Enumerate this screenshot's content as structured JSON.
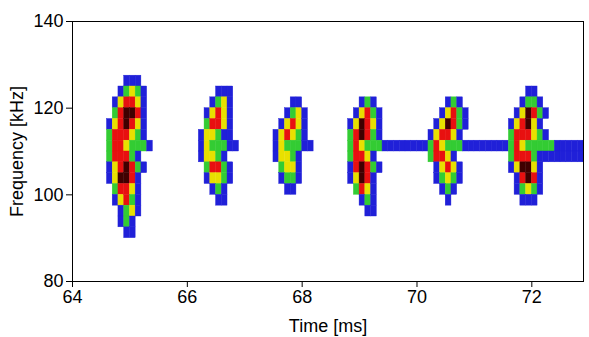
{
  "chart_data": {
    "type": "heatmap",
    "x_label": "Time [ms]",
    "y_label": "Frequency [kHz]",
    "xlim": [
      64,
      72.9
    ],
    "ylim": [
      80,
      140
    ],
    "xticks": [
      64,
      66,
      68,
      70,
      72
    ],
    "yticks": [
      80,
      100,
      120,
      140
    ],
    "time_step": 0.1,
    "frequency_step": 2.5,
    "colors": [
      "#2020d8",
      "#33cc33",
      "#e8e000",
      "#e81010",
      "#400000"
    ],
    "rows": [
      {
        "frequency": 125,
        "start": 64.9,
        "levels": [
          1,
          1,
          1
        ]
      },
      {
        "frequency": 122.5,
        "start": 64.8,
        "levels": [
          1,
          2,
          3,
          2,
          1
        ]
      },
      {
        "frequency": 120,
        "start": 64.7,
        "levels": [
          1,
          3,
          4,
          4,
          3,
          1
        ]
      },
      {
        "frequency": 117.5,
        "start": 64.7,
        "levels": [
          2,
          4,
          5,
          5,
          4,
          1
        ]
      },
      {
        "frequency": 115,
        "start": 64.6,
        "levels": [
          1,
          3,
          4,
          5,
          4,
          3,
          1
        ]
      },
      {
        "frequency": 112.5,
        "start": 64.6,
        "levels": [
          2,
          4,
          4,
          4,
          3,
          2,
          1
        ]
      },
      {
        "frequency": 110,
        "start": 64.6,
        "levels": [
          2,
          4,
          4,
          3,
          2,
          2,
          2,
          1
        ]
      },
      {
        "frequency": 107.5,
        "start": 64.6,
        "levels": [
          2,
          4,
          4,
          4,
          2,
          1
        ]
      },
      {
        "frequency": 105,
        "start": 64.6,
        "levels": [
          1,
          3,
          4,
          5,
          4,
          2,
          1
        ]
      },
      {
        "frequency": 102.5,
        "start": 64.6,
        "levels": [
          1,
          3,
          5,
          5,
          4,
          1
        ]
      },
      {
        "frequency": 100,
        "start": 64.7,
        "levels": [
          2,
          4,
          4,
          3,
          1
        ]
      },
      {
        "frequency": 97.5,
        "start": 64.7,
        "levels": [
          1,
          3,
          4,
          2,
          1
        ]
      },
      {
        "frequency": 95,
        "start": 64.8,
        "levels": [
          1,
          2,
          3,
          1
        ]
      },
      {
        "frequency": 92.5,
        "start": 64.8,
        "levels": [
          1,
          2,
          1
        ]
      },
      {
        "frequency": 90,
        "start": 64.9,
        "levels": [
          1,
          1
        ]
      },
      {
        "frequency": 122.5,
        "start": 66.5,
        "levels": [
          1,
          1,
          1
        ]
      },
      {
        "frequency": 120,
        "start": 66.4,
        "levels": [
          1,
          2,
          3,
          1
        ]
      },
      {
        "frequency": 117.5,
        "start": 66.3,
        "levels": [
          1,
          3,
          4,
          3,
          1
        ]
      },
      {
        "frequency": 115,
        "start": 66.3,
        "levels": [
          2,
          4,
          4,
          3,
          1
        ]
      },
      {
        "frequency": 112.5,
        "start": 66.2,
        "levels": [
          1,
          3,
          3,
          2,
          1,
          1
        ]
      },
      {
        "frequency": 110,
        "start": 66.2,
        "levels": [
          1,
          3,
          2,
          2,
          2,
          1,
          1
        ]
      },
      {
        "frequency": 107.5,
        "start": 66.2,
        "levels": [
          1,
          3,
          3,
          2,
          1
        ]
      },
      {
        "frequency": 105,
        "start": 66.3,
        "levels": [
          2,
          4,
          4,
          2,
          1
        ]
      },
      {
        "frequency": 102.5,
        "start": 66.3,
        "levels": [
          1,
          3,
          3,
          2,
          1
        ]
      },
      {
        "frequency": 100,
        "start": 66.4,
        "levels": [
          1,
          2,
          1
        ]
      },
      {
        "frequency": 97.5,
        "start": 66.5,
        "levels": [
          1,
          1
        ]
      },
      {
        "frequency": 120,
        "start": 67.8,
        "levels": [
          1,
          1
        ]
      },
      {
        "frequency": 117.5,
        "start": 67.7,
        "levels": [
          1,
          2,
          3,
          1
        ]
      },
      {
        "frequency": 115,
        "start": 67.6,
        "levels": [
          1,
          3,
          4,
          3,
          1
        ]
      },
      {
        "frequency": 112.5,
        "start": 67.5,
        "levels": [
          1,
          3,
          4,
          3,
          2,
          1
        ]
      },
      {
        "frequency": 110,
        "start": 67.5,
        "levels": [
          1,
          3,
          2,
          2,
          2,
          1,
          1
        ]
      },
      {
        "frequency": 107.5,
        "start": 67.5,
        "levels": [
          1,
          3,
          3,
          2,
          1
        ]
      },
      {
        "frequency": 105,
        "start": 67.6,
        "levels": [
          2,
          3,
          3,
          1
        ]
      },
      {
        "frequency": 102.5,
        "start": 67.6,
        "levels": [
          1,
          2,
          2,
          1
        ]
      },
      {
        "frequency": 100,
        "start": 67.7,
        "levels": [
          1,
          1
        ]
      },
      {
        "frequency": 120,
        "start": 69.0,
        "levels": [
          1,
          2,
          1
        ]
      },
      {
        "frequency": 117.5,
        "start": 68.9,
        "levels": [
          1,
          3,
          4,
          2,
          1
        ]
      },
      {
        "frequency": 115,
        "start": 68.8,
        "levels": [
          1,
          3,
          5,
          4,
          3,
          1
        ]
      },
      {
        "frequency": 112.5,
        "start": 68.8,
        "levels": [
          2,
          4,
          5,
          4,
          2,
          1
        ]
      },
      {
        "frequency": 110,
        "start": 68.8,
        "levels": [
          2,
          4,
          3,
          2,
          2,
          2,
          1,
          1
        ]
      },
      {
        "frequency": 107.5,
        "start": 68.8,
        "levels": [
          2,
          4,
          4,
          3,
          1
        ]
      },
      {
        "frequency": 105,
        "start": 68.8,
        "levels": [
          1,
          4,
          5,
          4,
          2,
          1
        ]
      },
      {
        "frequency": 102.5,
        "start": 68.8,
        "levels": [
          1,
          3,
          5,
          4,
          1
        ]
      },
      {
        "frequency": 100,
        "start": 68.9,
        "levels": [
          2,
          4,
          3,
          1
        ]
      },
      {
        "frequency": 97.5,
        "start": 69.0,
        "levels": [
          1,
          2,
          1
        ]
      },
      {
        "frequency": 95,
        "start": 69.1,
        "levels": [
          1,
          1
        ]
      },
      {
        "frequency": 110,
        "start": 69.6,
        "levels": [
          1,
          1,
          1,
          1,
          1,
          1
        ]
      },
      {
        "frequency": 120,
        "start": 70.5,
        "levels": [
          1,
          2,
          1
        ]
      },
      {
        "frequency": 117.5,
        "start": 70.4,
        "levels": [
          1,
          3,
          4,
          2,
          1
        ]
      },
      {
        "frequency": 115,
        "start": 70.3,
        "levels": [
          1,
          3,
          5,
          4,
          2,
          1
        ]
      },
      {
        "frequency": 112.5,
        "start": 70.2,
        "levels": [
          1,
          3,
          4,
          4,
          3,
          1
        ]
      },
      {
        "frequency": 110,
        "start": 70.2,
        "levels": [
          2,
          4,
          3,
          2,
          2,
          2,
          1
        ]
      },
      {
        "frequency": 107.5,
        "start": 70.2,
        "levels": [
          2,
          4,
          4,
          3,
          1
        ]
      },
      {
        "frequency": 105,
        "start": 70.3,
        "levels": [
          1,
          3,
          4,
          3,
          1
        ]
      },
      {
        "frequency": 102.5,
        "start": 70.3,
        "levels": [
          1,
          2,
          3,
          2,
          1
        ]
      },
      {
        "frequency": 100,
        "start": 70.4,
        "levels": [
          1,
          2,
          1
        ]
      },
      {
        "frequency": 97.5,
        "start": 70.5,
        "levels": [
          1
        ]
      },
      {
        "frequency": 110,
        "start": 70.9,
        "levels": [
          1,
          1,
          1,
          1,
          1,
          1,
          1
        ]
      },
      {
        "frequency": 122.5,
        "start": 71.9,
        "levels": [
          1,
          1
        ]
      },
      {
        "frequency": 120,
        "start": 71.8,
        "levels": [
          1,
          2,
          2,
          1
        ]
      },
      {
        "frequency": 117.5,
        "start": 71.7,
        "levels": [
          1,
          3,
          5,
          4,
          2,
          1
        ]
      },
      {
        "frequency": 115,
        "start": 71.6,
        "levels": [
          1,
          3,
          4,
          5,
          3,
          1
        ]
      },
      {
        "frequency": 112.5,
        "start": 71.6,
        "levels": [
          2,
          4,
          4,
          4,
          3,
          2,
          1
        ]
      },
      {
        "frequency": 110,
        "start": 71.6,
        "levels": [
          2,
          4,
          3,
          2,
          2,
          2,
          2,
          2,
          1,
          1,
          1,
          1,
          1,
          1
        ]
      },
      {
        "frequency": 107.5,
        "start": 71.6,
        "levels": [
          2,
          4,
          4,
          4,
          2,
          1,
          1,
          1,
          1,
          1,
          1,
          1,
          1
        ]
      },
      {
        "frequency": 105,
        "start": 71.6,
        "levels": [
          1,
          3,
          5,
          5,
          3,
          1
        ]
      },
      {
        "frequency": 102.5,
        "start": 71.7,
        "levels": [
          1,
          4,
          5,
          4,
          1
        ]
      },
      {
        "frequency": 100,
        "start": 71.7,
        "levels": [
          1,
          2,
          3,
          2,
          1
        ]
      },
      {
        "frequency": 97.5,
        "start": 71.8,
        "levels": [
          1,
          1,
          1
        ]
      }
    ]
  }
}
